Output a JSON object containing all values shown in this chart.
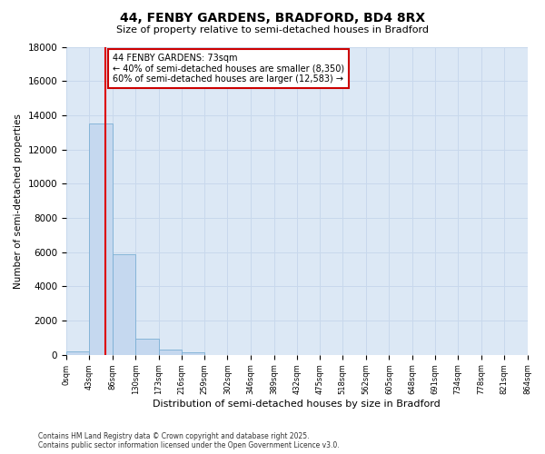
{
  "title1": "44, FENBY GARDENS, BRADFORD, BD4 8RX",
  "title2": "Size of property relative to semi-detached houses in Bradford",
  "xlabel": "Distribution of semi-detached houses by size in Bradford",
  "ylabel": "Number of semi-detached properties",
  "property_size": 73,
  "annotation_label": "44 FENBY GARDENS: 73sqm",
  "annotation_line1": "← 40% of semi-detached houses are smaller (8,350)",
  "annotation_line2": "60% of semi-detached houses are larger (12,583) →",
  "bins": [
    0,
    43,
    86,
    130,
    173,
    216,
    259,
    302,
    346,
    389,
    432,
    475,
    518,
    562,
    605,
    648,
    691,
    734,
    778,
    821,
    864
  ],
  "bin_labels": [
    "0sqm",
    "43sqm",
    "86sqm",
    "130sqm",
    "173sqm",
    "216sqm",
    "259sqm",
    "302sqm",
    "346sqm",
    "389sqm",
    "432sqm",
    "475sqm",
    "518sqm",
    "562sqm",
    "605sqm",
    "648sqm",
    "691sqm",
    "734sqm",
    "778sqm",
    "821sqm",
    "864sqm"
  ],
  "bar_values": [
    200,
    13500,
    5900,
    950,
    320,
    150,
    0,
    0,
    0,
    0,
    0,
    0,
    0,
    0,
    0,
    0,
    0,
    0,
    0,
    0
  ],
  "bar_color": "#c5d8ef",
  "bar_edge_color": "#7bafd4",
  "vline_color": "#dd0000",
  "vline_x": 73,
  "ylim": [
    0,
    18000
  ],
  "yticks": [
    0,
    2000,
    4000,
    6000,
    8000,
    10000,
    12000,
    14000,
    16000,
    18000
  ],
  "grid_color": "#c8d8ec",
  "bg_color": "#dce8f5",
  "annotation_box_color": "#cc0000",
  "footer1": "Contains HM Land Registry data © Crown copyright and database right 2025.",
  "footer2": "Contains public sector information licensed under the Open Government Licence v3.0."
}
